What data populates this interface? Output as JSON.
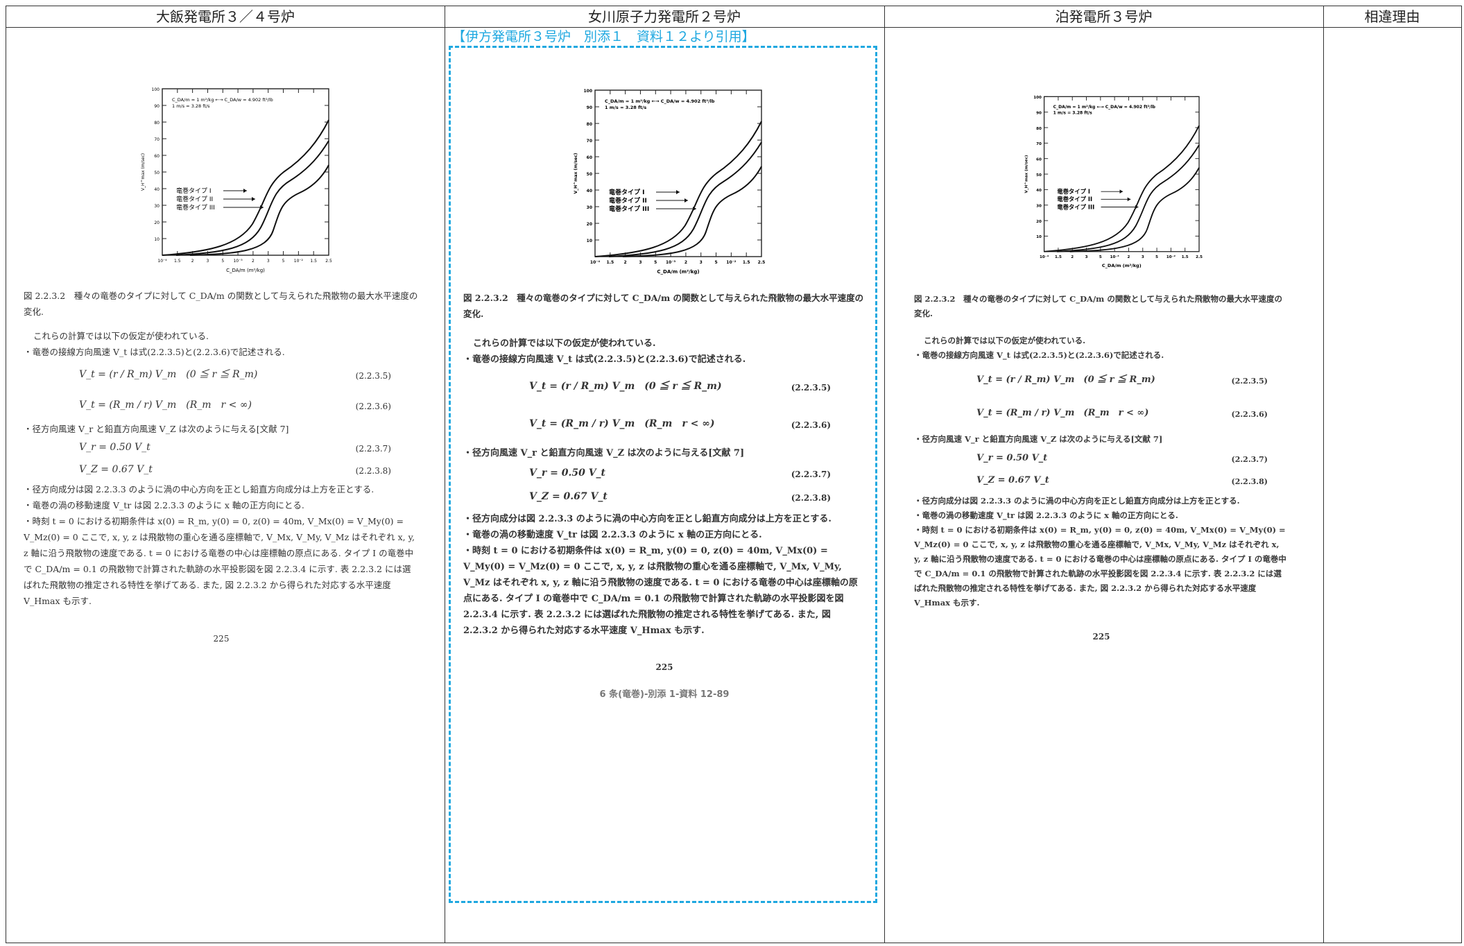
{
  "header": {
    "col1": "大飯発電所３／４号炉",
    "col2": "女川原子力発電所２号炉",
    "col3": "泊発電所３号炉",
    "col4": "相違理由"
  },
  "citation": "【伊方発電所３号炉　別添１　資料１２より引用】",
  "figure": {
    "formula_text": "C_DA/m = 1 m²/kg ←→ C_DA/w = 4.902 ft²/lb",
    "formula_text2": "1 m/s = 3.28 ft/s",
    "type1": "竜巻タイプ I",
    "type2": "竜巻タイプ II",
    "type3": "竜巻タイプ III",
    "ylabel": "V_H^max (m/sec)",
    "xlabel": "C_DA/m (m²/kg)",
    "yticks": [
      "100",
      "90",
      "80",
      "70",
      "60",
      "50",
      "40",
      "30",
      "20",
      "10"
    ],
    "xticks": [
      "10⁻⁴",
      "1.5",
      "2",
      "3",
      "5",
      "10⁻³",
      "2",
      "3",
      "5",
      "10⁻²",
      "1.5",
      "2.5"
    ]
  },
  "doc": {
    "caption": "図 2.2.3.2　種々の竜巻のタイプに対して C_DA/m の関数として与えられた飛散物の最大水平速度の変化.",
    "p1": "これらの計算では以下の仮定が使われている.",
    "p2": "・竜巻の接線方向風速 V_t は式(2.2.3.5)と(2.2.3.6)で記述される.",
    "eq1": "V_t = (r / R_m) V_m　(0 ≦ r ≦ R_m)",
    "eq1n": "(2.2.3.5)",
    "eq2": "V_t = (R_m / r) V_m　(R_m　r < ∞)",
    "eq2n": "(2.2.3.6)",
    "p3": "・径方向風速 V_r と鉛直方向風速 V_Z は次のように与える[文献 7]",
    "eq3": "V_r = 0.50 V_t",
    "eq3n": "(2.2.3.7)",
    "eq4": "V_Z = 0.67 V_t",
    "eq4n": "(2.2.3.8)",
    "p4": "・径方向成分は図 2.2.3.3 のように渦の中心方向を正とし鉛直方向成分は上方を正とする.",
    "p5": "・竜巻の渦の移動速度 V_tr は図 2.2.3.3 のように x 軸の正方向にとる.",
    "p6": "・時刻 t = 0 における初期条件は x(0) = R_m, y(0) = 0, z(0) = 40m, V_Mx(0) = V_My(0) = V_Mz(0) = 0 ここで, x, y, z は飛散物の重心を通る座標軸で, V_Mx, V_My, V_Mz はそれぞれ x, y, z 軸に沿う飛散物の速度である. t = 0 における竜巻の中心は座標軸の原点にある. タイプ I の竜巻中で C_DA/m = 0.1 の飛散物で計算された軌跡の水平投影図を図 2.2.3.4 に示す. 表 2.2.3.2 には選ばれた飛散物の推定される特性を挙げてある. また, 図 2.2.3.2 から得られた対応する水平速度 V_Hmax も示す.",
    "page": "225",
    "footer": "6 条(竜巻)-別添 1-資料 12-89"
  }
}
